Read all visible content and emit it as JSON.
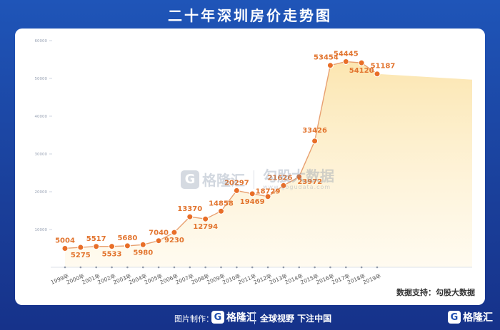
{
  "title": "二十年深圳房价走势图",
  "source_label": "数据支持：勾股大数据",
  "watermark": {
    "brand": "格隆汇",
    "brand_icon": "G",
    "site": "勾股大数据",
    "url": "www.gogudata.com"
  },
  "footer": {
    "credit_label": "图片制作：",
    "brand": "格隆汇",
    "brand_icon": "G",
    "slogan": "全球视野 下注中国",
    "corner_brand": "格隆汇"
  },
  "colors": {
    "background": "#1f55b8",
    "line": "#e8a070",
    "marker": "#e86e28",
    "label": "#e2742e",
    "area_top": "#fbe3a8",
    "area_bottom": "#fff8e6"
  },
  "chart_data": {
    "type": "line",
    "title": "二十年深圳房价走势图",
    "xlabel": "",
    "ylabel": "",
    "ylim": [
      0,
      60000
    ],
    "yticks": [
      10000,
      20000,
      30000,
      40000,
      50000,
      60000
    ],
    "grid": false,
    "area_fill": true,
    "categories": [
      "1999年",
      "2000年",
      "2001年",
      "2002年",
      "2003年",
      "2004年",
      "2005年",
      "2006年",
      "2007年",
      "2008年",
      "2009年",
      "2010年",
      "2011年",
      "2012年",
      "2013年",
      "2014年",
      "2015年",
      "2016年",
      "2017年",
      "2018年",
      "2019年"
    ],
    "series": [
      {
        "values": [
          5004,
          5275,
          5517,
          5533,
          5680,
          5980,
          7040,
          9230,
          13370,
          12794,
          14858,
          20297,
          19469,
          18729,
          21626,
          23972,
          33426,
          53454,
          54445,
          54120,
          51187
        ]
      }
    ]
  }
}
